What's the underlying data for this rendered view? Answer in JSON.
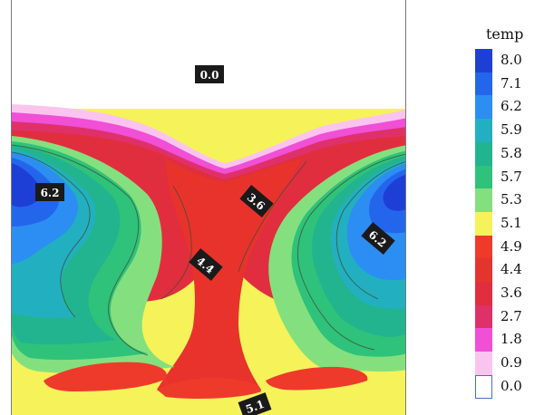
{
  "chart_data": {
    "type": "heatmap",
    "subtype": "filled-contour",
    "legend": {
      "title": "temp",
      "placement": "right",
      "levels": [
        {
          "value": "8.0",
          "color": "#1e3fd6"
        },
        {
          "value": "7.1",
          "color": "#2366ec"
        },
        {
          "value": "6.2",
          "color": "#2c8ef2"
        },
        {
          "value": "5.9",
          "color": "#22b0c0"
        },
        {
          "value": "5.8",
          "color": "#22b48e"
        },
        {
          "value": "5.7",
          "color": "#2fc27a"
        },
        {
          "value": "5.3",
          "color": "#84e07e"
        },
        {
          "value": "5.1",
          "color": "#f6f25a"
        },
        {
          "value": "4.9",
          "color": "#ee3a2b"
        },
        {
          "value": "4.4",
          "color": "#e3352e"
        },
        {
          "value": "3.6",
          "color": "#e12e3e"
        },
        {
          "value": "2.7",
          "color": "#e0306a"
        },
        {
          "value": "1.8",
          "color": "#f04fd6"
        },
        {
          "value": "0.9",
          "color": "#fbc4ef"
        },
        {
          "value": "0.0",
          "color": "#ffffff"
        }
      ]
    },
    "contour_labels": [
      {
        "id": "label-0-0",
        "text": "0.0"
      },
      {
        "id": "label-6-2-left",
        "text": "6.2"
      },
      {
        "id": "label-3-6",
        "text": "3.6"
      },
      {
        "id": "label-6-2-right",
        "text": "6.2"
      },
      {
        "id": "label-4-4",
        "text": "4.4"
      },
      {
        "id": "label-5-1",
        "text": "5.1"
      }
    ],
    "grid": false
  }
}
